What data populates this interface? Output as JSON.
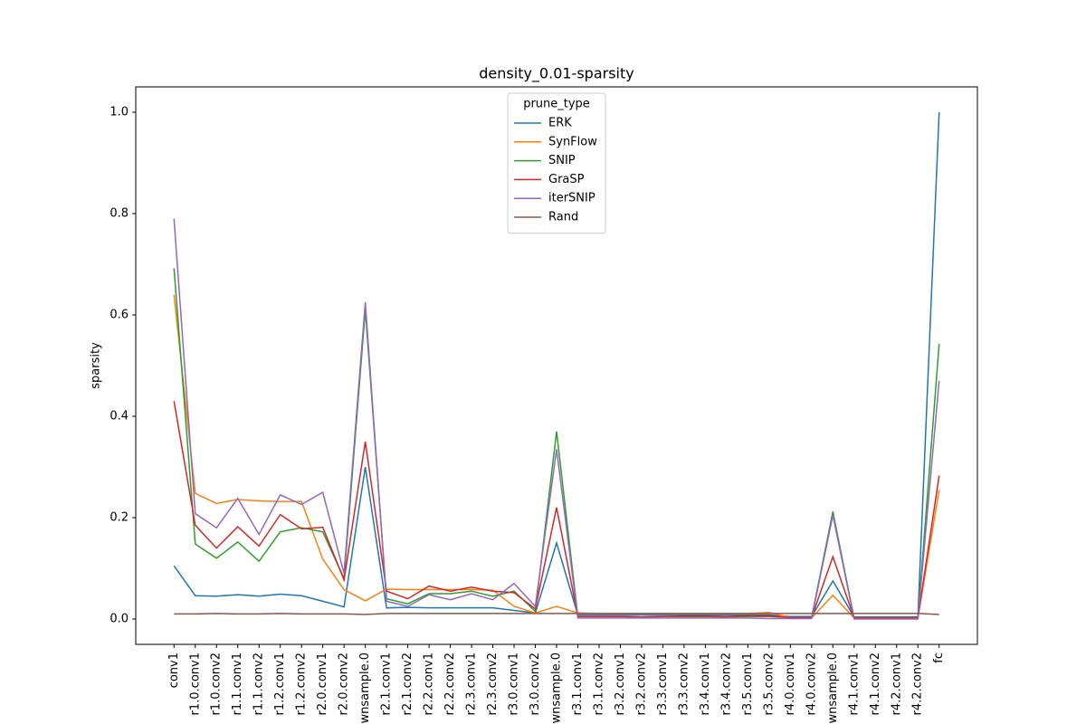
{
  "chart_data": {
    "type": "line",
    "title": "density_0.01-sparsity",
    "y_label": "sparsity",
    "categories": [
      "conv1",
      "r1.0.conv1",
      "r1.0.conv2",
      "r1.1.conv1",
      "r1.1.conv2",
      "r1.2.conv1",
      "r1.2.conv2",
      "r2.0.conv1",
      "r2.0.conv2",
      "wnsample.0",
      "r2.1.conv1",
      "r2.1.conv2",
      "r2.2.conv1",
      "r2.2.conv2",
      "r2.3.conv1",
      "r2.3.conv2",
      "r3.0.conv1",
      "r3.0.conv2",
      "wnsample.0",
      "r3.1.conv1",
      "r3.1.conv2",
      "r3.2.conv1",
      "r3.2.conv2",
      "r3.3.conv1",
      "r3.3.conv2",
      "r3.4.conv1",
      "r3.4.conv2",
      "r3.5.conv1",
      "r3.5.conv2",
      "r4.0.conv1",
      "r4.0.conv2",
      "wnsample.0",
      "r4.1.conv1",
      "r4.1.conv2",
      "r4.2.conv1",
      "r4.2.conv2",
      "fc"
    ],
    "legend_title": "prune_type",
    "legend_position": "upper center",
    "series": [
      {
        "name": "ERK",
        "color": "#1f77b4",
        "values": [
          0.105,
          0.046,
          0.045,
          0.048,
          0.045,
          0.049,
          0.046,
          0.035,
          0.024,
          0.3,
          0.022,
          0.023,
          0.022,
          0.022,
          0.022,
          0.022,
          0.017,
          0.012,
          0.15,
          0.008,
          0.008,
          0.008,
          0.008,
          0.008,
          0.008,
          0.008,
          0.008,
          0.008,
          0.008,
          0.005,
          0.005,
          0.075,
          0.004,
          0.004,
          0.004,
          0.004,
          1.0
        ]
      },
      {
        "name": "SynFlow",
        "color": "#ff7f0e",
        "values": [
          0.64,
          0.248,
          0.228,
          0.236,
          0.233,
          0.232,
          0.232,
          0.118,
          0.058,
          0.036,
          0.059,
          0.058,
          0.058,
          0.058,
          0.058,
          0.057,
          0.025,
          0.012,
          0.025,
          0.012,
          0.011,
          0.011,
          0.011,
          0.011,
          0.011,
          0.011,
          0.011,
          0.011,
          0.013,
          0.003,
          0.002,
          0.047,
          0.002,
          0.002,
          0.002,
          0.002,
          0.255
        ]
      },
      {
        "name": "SNIP",
        "color": "#2ca02c",
        "values": [
          0.692,
          0.148,
          0.12,
          0.152,
          0.114,
          0.172,
          0.18,
          0.172,
          0.08,
          0.61,
          0.04,
          0.03,
          0.05,
          0.05,
          0.055,
          0.045,
          0.055,
          0.015,
          0.37,
          0.005,
          0.005,
          0.005,
          0.004,
          0.005,
          0.005,
          0.005,
          0.004,
          0.005,
          0.005,
          0.003,
          0.003,
          0.212,
          0.001,
          0.001,
          0.001,
          0.001,
          0.543
        ]
      },
      {
        "name": "GraSP",
        "color": "#d62728",
        "values": [
          0.43,
          0.185,
          0.14,
          0.182,
          0.144,
          0.206,
          0.178,
          0.181,
          0.077,
          0.35,
          0.055,
          0.04,
          0.065,
          0.055,
          0.063,
          0.055,
          0.052,
          0.02,
          0.22,
          0.005,
          0.005,
          0.005,
          0.004,
          0.005,
          0.006,
          0.006,
          0.005,
          0.007,
          0.006,
          0.003,
          0.003,
          0.123,
          0.002,
          0.002,
          0.002,
          0.002,
          0.283
        ]
      },
      {
        "name": "iterSNIP",
        "color": "#9467bd",
        "values": [
          0.79,
          0.208,
          0.18,
          0.238,
          0.167,
          0.245,
          0.226,
          0.25,
          0.09,
          0.625,
          0.035,
          0.025,
          0.048,
          0.038,
          0.05,
          0.038,
          0.07,
          0.025,
          0.335,
          0.002,
          0.002,
          0.002,
          0.002,
          0.002,
          0.002,
          0.002,
          0.002,
          0.002,
          0.001,
          0.001,
          0.001,
          0.205,
          0.0,
          0.0,
          0.0,
          0.0,
          0.47
        ]
      },
      {
        "name": "Rand",
        "color": "#8c564b",
        "values": [
          0.01,
          0.01,
          0.011,
          0.01,
          0.01,
          0.011,
          0.01,
          0.01,
          0.01,
          0.009,
          0.011,
          0.011,
          0.011,
          0.011,
          0.011,
          0.011,
          0.011,
          0.011,
          0.011,
          0.011,
          0.011,
          0.011,
          0.011,
          0.011,
          0.011,
          0.011,
          0.011,
          0.011,
          0.011,
          0.011,
          0.011,
          0.011,
          0.011,
          0.011,
          0.011,
          0.011,
          0.009
        ]
      }
    ],
    "ylim": [
      -0.05,
      1.05
    ],
    "yticks": [
      {
        "value": 0,
        "label": "0.0"
      },
      0.2,
      0.4,
      0.6,
      0.8,
      {
        "value": 1,
        "label": "1.0"
      }
    ],
    "grid": false
  }
}
